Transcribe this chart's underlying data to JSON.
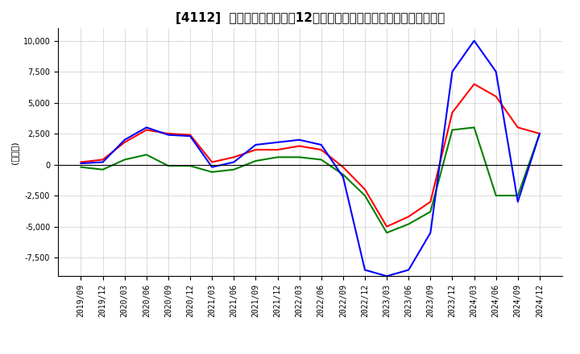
{
  "title": "[4112]  キャッシュフローの12か月移動合計の対前年同期増減額の推移",
  "ylabel": "(百万円)",
  "ylim": [
    -9000,
    11000
  ],
  "yticks": [
    -7500,
    -5000,
    -2500,
    0,
    2500,
    5000,
    7500,
    10000
  ],
  "colors": {
    "operating": "#ff0000",
    "investing": "#008000",
    "free": "#0000ff"
  },
  "x_labels": [
    "2019/09",
    "2019/12",
    "2020/03",
    "2020/06",
    "2020/09",
    "2020/12",
    "2021/03",
    "2021/06",
    "2021/09",
    "2021/12",
    "2022/03",
    "2022/06",
    "2022/09",
    "2022/12",
    "2023/03",
    "2023/06",
    "2023/09",
    "2023/12",
    "2024/03",
    "2024/06",
    "2024/09",
    "2024/12"
  ],
  "operating_cf": [
    200,
    400,
    1800,
    2800,
    2500,
    2400,
    200,
    600,
    1200,
    1200,
    1500,
    1200,
    -200,
    -2000,
    -5000,
    -4200,
    -3000,
    4200,
    6500,
    5500,
    3000,
    2500
  ],
  "investing_cf": [
    -200,
    -400,
    400,
    800,
    -100,
    -100,
    -600,
    -400,
    300,
    600,
    600,
    400,
    -800,
    -2500,
    -5500,
    -4800,
    -3800,
    2800,
    3000,
    -2500,
    -2500,
    2500
  ],
  "free_cf": [
    100,
    200,
    2000,
    3000,
    2400,
    2300,
    -200,
    200,
    1600,
    1800,
    2000,
    1600,
    -1000,
    -8500,
    -9000,
    -8500,
    -5500,
    7500,
    10000,
    7500,
    -3000,
    2500
  ],
  "background_color": "#ffffff",
  "grid_color": "#cccccc",
  "title_fontsize": 11,
  "axis_fontsize": 8,
  "tick_fontsize": 7,
  "legend_fontsize": 9,
  "linewidth": 1.5
}
